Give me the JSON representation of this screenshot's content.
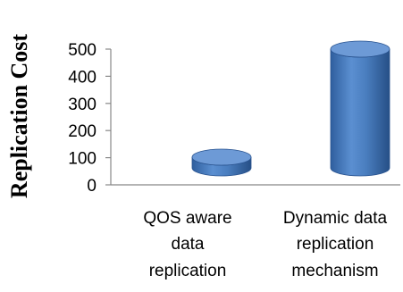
{
  "chart_data": {
    "type": "bar",
    "style": "3d-cylinder",
    "title": "",
    "xlabel": "",
    "ylabel": "Replication Cost",
    "categories": [
      [
        "QOS aware",
        "data",
        "replication"
      ],
      [
        "Dynamic data",
        "replication",
        "mechanism"
      ]
    ],
    "values": [
      60,
      500
    ],
    "ylim": [
      0,
      500
    ],
    "yticks": [
      "0",
      "100",
      "200",
      "300",
      "400",
      "500"
    ],
    "grid": false,
    "legend": "none",
    "bar_color": "#4a7ebf",
    "bar_top_color": "#6d9ad6",
    "axis_color": "#888888"
  }
}
